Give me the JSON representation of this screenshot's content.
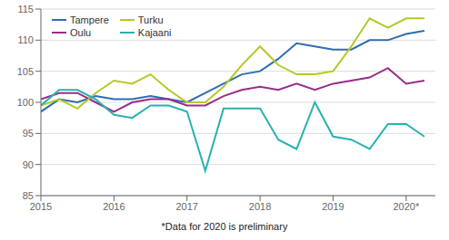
{
  "chart_data": {
    "type": "line",
    "footnote": "*Data for 2020 is preliminary",
    "x": [
      2015.0,
      2015.25,
      2015.5,
      2015.75,
      2016.0,
      2016.25,
      2016.5,
      2016.75,
      2017.0,
      2017.25,
      2017.5,
      2017.75,
      2018.0,
      2018.25,
      2018.5,
      2018.75,
      2019.0,
      2019.25,
      2019.5,
      2019.75,
      2020.0,
      2020.25
    ],
    "series": [
      {
        "name": "Tampere",
        "color": "#2e6daf",
        "values": [
          98.5,
          100.5,
          100.0,
          101.0,
          100.5,
          100.5,
          101.0,
          100.5,
          100.0,
          101.5,
          103.0,
          104.5,
          105.0,
          107.0,
          109.5,
          109.0,
          108.5,
          108.5,
          110.0,
          110.0,
          111.0,
          111.5
        ]
      },
      {
        "name": "Oulu",
        "color": "#982d8a",
        "values": [
          100.5,
          101.5,
          101.5,
          100.0,
          98.5,
          100.0,
          100.5,
          100.5,
          99.5,
          99.5,
          101.0,
          102.0,
          102.5,
          102.0,
          103.0,
          102.0,
          103.0,
          103.5,
          104.0,
          105.5,
          103.0,
          103.5
        ]
      },
      {
        "name": "Turku",
        "color": "#b5c826",
        "values": [
          99.5,
          100.5,
          99.0,
          101.5,
          103.5,
          103.0,
          104.5,
          102.0,
          100.0,
          100.0,
          102.5,
          106.0,
          109.0,
          106.0,
          104.5,
          104.5,
          105.0,
          109.0,
          113.5,
          112.0,
          113.5,
          113.5
        ]
      },
      {
        "name": "Kajaani",
        "color": "#28b2ae",
        "values": [
          99.5,
          102.0,
          102.0,
          100.5,
          98.0,
          97.5,
          99.5,
          99.5,
          98.5,
          89.0,
          99.0,
          99.0,
          99.0,
          94.0,
          92.5,
          100.0,
          94.5,
          94.0,
          92.5,
          96.5,
          96.5,
          94.5
        ]
      }
    ],
    "xlim": [
      2015,
      2020.4
    ],
    "xticks": [
      2015,
      2016,
      2017,
      2018,
      2019,
      {
        "value": 2020,
        "label": "2020*"
      }
    ],
    "ylim": [
      85,
      115
    ],
    "yticks": [
      85,
      90,
      95,
      100,
      105,
      110,
      115
    ],
    "grid": true,
    "legend": "upper left"
  }
}
